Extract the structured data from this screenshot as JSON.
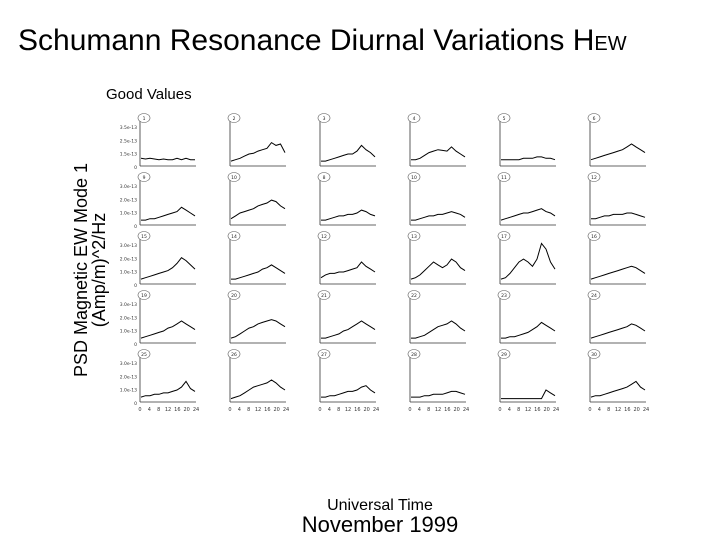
{
  "title_main": "Schumann Resonance Diurnal Variations H",
  "title_sub": "EW",
  "subtitle": "Good Values",
  "ylabel_line1": "PSD Magnetic EW Mode 1",
  "ylabel_line2": "(Amp/m)^2/Hz",
  "xlabel": "Universal Time",
  "month_label": "November 1999",
  "colors": {
    "trace": "#000000",
    "axis": "#333333",
    "background": "#ffffff"
  },
  "chart_data": {
    "type": "line",
    "layout_rows": 5,
    "layout_cols": 6,
    "xlim": [
      0,
      24
    ],
    "x_ticks": [
      "0",
      "4",
      "8",
      "12",
      "16",
      "20",
      "24"
    ],
    "row_y_ticks": [
      [
        "3.5e-13",
        "2.5e-13",
        "1.5e-13",
        "0"
      ],
      [
        "3.0e-13",
        "2.0e-13",
        "1.0e-13",
        "0"
      ],
      [
        "3.0e-13",
        "2.0e-13",
        "1.0e-13",
        "0"
      ],
      [
        "3.0e-13",
        "2.0e-13",
        "1.0e-13",
        "0"
      ],
      [
        "3.0e-13",
        "2.0e-13",
        "1.0e-13",
        "0"
      ]
    ],
    "panel_day_labels": [
      "1",
      "2",
      "3",
      "4",
      "5",
      "6",
      "9",
      "10",
      "8",
      "10",
      "11",
      "12",
      "15",
      "14",
      "12",
      "13",
      "17",
      "16",
      "19",
      "20",
      "21",
      "22",
      "23",
      "24",
      "25",
      "26",
      "27",
      "28",
      "29",
      "30"
    ],
    "series": [
      {
        "day": "1",
        "values": [
          0.4,
          0.35,
          0.4,
          0.35,
          0.3,
          0.35,
          0.3,
          0.3,
          0.4,
          0.3,
          0.4,
          0.3,
          0.3
        ]
      },
      {
        "day": "2",
        "values": [
          0.2,
          0.3,
          0.4,
          0.55,
          0.7,
          0.75,
          0.9,
          1.0,
          1.1,
          1.5,
          1.3,
          1.4,
          0.8
        ]
      },
      {
        "day": "3",
        "values": [
          0.2,
          0.2,
          0.3,
          0.4,
          0.5,
          0.6,
          0.7,
          0.7,
          0.9,
          1.3,
          1.0,
          0.8,
          0.5
        ]
      },
      {
        "day": "4",
        "values": [
          0.3,
          0.3,
          0.4,
          0.6,
          0.8,
          0.9,
          1.0,
          0.95,
          0.9,
          1.2,
          0.9,
          0.7,
          0.5
        ]
      },
      {
        "day": "5",
        "values": [
          0.3,
          0.3,
          0.3,
          0.3,
          0.3,
          0.4,
          0.4,
          0.4,
          0.5,
          0.5,
          0.4,
          0.4,
          0.3
        ]
      },
      {
        "day": "6",
        "values": [
          0.3,
          0.4,
          0.5,
          0.6,
          0.7,
          0.8,
          0.9,
          1.0,
          1.2,
          1.4,
          1.2,
          1.0,
          0.8
        ]
      },
      {
        "day": "9",
        "values": [
          0.2,
          0.2,
          0.3,
          0.3,
          0.4,
          0.5,
          0.6,
          0.7,
          0.8,
          1.1,
          0.9,
          0.7,
          0.5
        ]
      },
      {
        "day": "10",
        "values": [
          0.3,
          0.5,
          0.7,
          0.8,
          0.9,
          1.0,
          1.2,
          1.3,
          1.4,
          1.6,
          1.5,
          1.2,
          1.0
        ]
      },
      {
        "day": "8",
        "values": [
          0.2,
          0.2,
          0.3,
          0.4,
          0.5,
          0.5,
          0.6,
          0.6,
          0.7,
          0.9,
          0.8,
          0.6,
          0.5
        ]
      },
      {
        "day": "10",
        "values": [
          0.2,
          0.2,
          0.3,
          0.4,
          0.5,
          0.5,
          0.6,
          0.6,
          0.7,
          0.8,
          0.7,
          0.6,
          0.4
        ]
      },
      {
        "day": "11",
        "values": [
          0.2,
          0.3,
          0.4,
          0.5,
          0.6,
          0.7,
          0.7,
          0.8,
          0.9,
          1.0,
          0.8,
          0.7,
          0.5
        ]
      },
      {
        "day": "12",
        "values": [
          0.3,
          0.3,
          0.4,
          0.5,
          0.5,
          0.6,
          0.6,
          0.6,
          0.7,
          0.7,
          0.6,
          0.5,
          0.4
        ]
      },
      {
        "day": "15",
        "values": [
          0.2,
          0.3,
          0.4,
          0.5,
          0.6,
          0.7,
          0.8,
          1.0,
          1.3,
          1.7,
          1.5,
          1.2,
          0.9
        ]
      },
      {
        "day": "14",
        "values": [
          0.2,
          0.2,
          0.3,
          0.4,
          0.5,
          0.6,
          0.7,
          0.9,
          1.0,
          1.2,
          1.0,
          0.8,
          0.6
        ]
      },
      {
        "day": "12",
        "values": [
          0.3,
          0.5,
          0.6,
          0.6,
          0.7,
          0.7,
          0.8,
          0.9,
          1.0,
          1.4,
          1.1,
          0.9,
          0.7
        ]
      },
      {
        "day": "13",
        "values": [
          0.2,
          0.3,
          0.5,
          0.8,
          1.1,
          1.4,
          1.2,
          1.0,
          1.2,
          1.6,
          1.4,
          1.0,
          0.8
        ]
      },
      {
        "day": "17",
        "values": [
          0.2,
          0.3,
          0.6,
          1.0,
          1.4,
          1.6,
          1.4,
          1.1,
          1.6,
          2.7,
          2.3,
          1.4,
          0.9
        ]
      },
      {
        "day": "16",
        "values": [
          0.2,
          0.3,
          0.4,
          0.5,
          0.6,
          0.7,
          0.8,
          0.9,
          1.0,
          1.1,
          1.0,
          0.8,
          0.6
        ]
      },
      {
        "day": "19",
        "values": [
          0.2,
          0.3,
          0.4,
          0.5,
          0.6,
          0.7,
          0.9,
          1.0,
          1.2,
          1.4,
          1.2,
          1.0,
          0.8
        ]
      },
      {
        "day": "20",
        "values": [
          0.2,
          0.3,
          0.5,
          0.7,
          0.9,
          1.0,
          1.2,
          1.3,
          1.4,
          1.5,
          1.4,
          1.2,
          1.0
        ]
      },
      {
        "day": "21",
        "values": [
          0.2,
          0.2,
          0.3,
          0.4,
          0.5,
          0.7,
          0.8,
          1.0,
          1.2,
          1.4,
          1.2,
          1.0,
          0.8
        ]
      },
      {
        "day": "22",
        "values": [
          0.2,
          0.2,
          0.3,
          0.4,
          0.6,
          0.8,
          1.0,
          1.1,
          1.2,
          1.4,
          1.2,
          0.9,
          0.7
        ]
      },
      {
        "day": "23",
        "values": [
          0.2,
          0.2,
          0.3,
          0.3,
          0.4,
          0.5,
          0.6,
          0.8,
          1.0,
          1.3,
          1.1,
          0.9,
          0.7
        ]
      },
      {
        "day": "24",
        "values": [
          0.2,
          0.3,
          0.4,
          0.5,
          0.6,
          0.7,
          0.8,
          0.9,
          1.0,
          1.2,
          1.1,
          0.9,
          0.7
        ]
      },
      {
        "day": "25",
        "values": [
          0.2,
          0.3,
          0.3,
          0.4,
          0.4,
          0.5,
          0.5,
          0.6,
          0.7,
          0.9,
          1.3,
          0.8,
          0.6
        ]
      },
      {
        "day": "26",
        "values": [
          0.1,
          0.2,
          0.3,
          0.5,
          0.7,
          0.9,
          1.0,
          1.1,
          1.2,
          1.4,
          1.2,
          0.9,
          0.7
        ]
      },
      {
        "day": "27",
        "values": [
          0.2,
          0.2,
          0.3,
          0.3,
          0.4,
          0.5,
          0.6,
          0.6,
          0.7,
          0.9,
          1.0,
          0.7,
          0.5
        ]
      },
      {
        "day": "28",
        "values": [
          0.2,
          0.2,
          0.2,
          0.3,
          0.3,
          0.4,
          0.4,
          0.4,
          0.5,
          0.6,
          0.6,
          0.5,
          0.4
        ]
      },
      {
        "day": "29",
        "values": [
          0.1,
          0.1,
          0.1,
          0.1,
          0.1,
          0.1,
          0.1,
          0.1,
          0.1,
          0.1,
          0.7,
          0.5,
          0.3
        ]
      },
      {
        "day": "30",
        "values": [
          0.2,
          0.3,
          0.3,
          0.4,
          0.5,
          0.6,
          0.7,
          0.8,
          0.9,
          1.1,
          1.3,
          0.9,
          0.7
        ]
      }
    ]
  }
}
